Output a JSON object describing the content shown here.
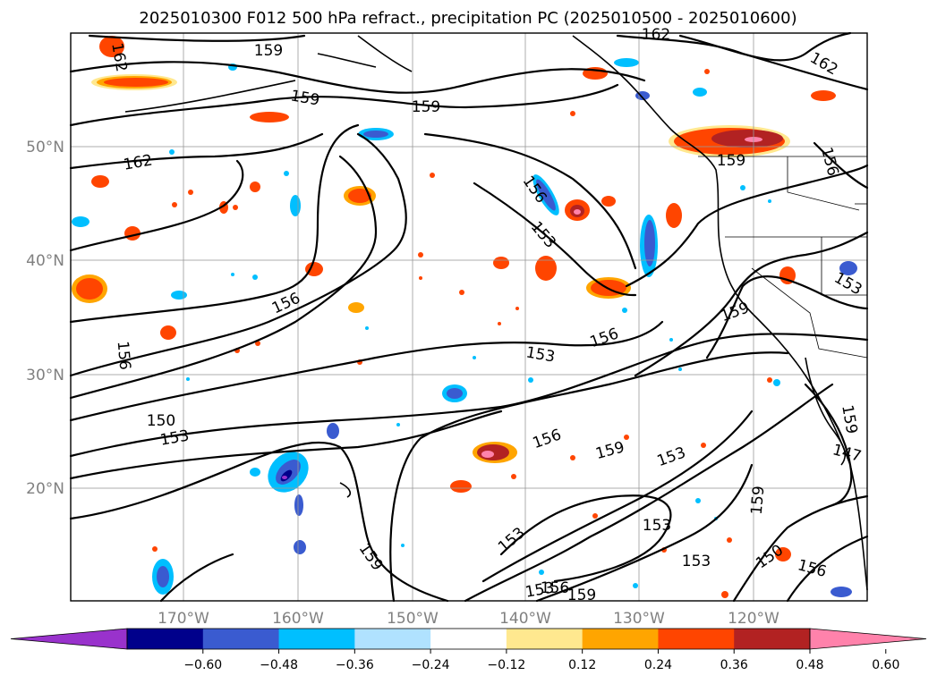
{
  "title": "2025010300 F012 500 hPa refract., precipitation PC (2025010500 - 2025010600)",
  "map": {
    "lat_labels": [
      "50°N",
      "40°N",
      "30°N",
      "20°N"
    ],
    "lon_labels": [
      "170°W",
      "160°W",
      "150°W",
      "140°W",
      "130°W",
      "120°W"
    ],
    "contour_labels": [
      "159",
      "162",
      "162",
      "159",
      "159",
      "162",
      "162",
      "159",
      "156",
      "156",
      "153",
      "153",
      "156",
      "159",
      "156",
      "153",
      "156",
      "150",
      "153",
      "156",
      "159",
      "153",
      "159",
      "147",
      "159",
      "153",
      "153",
      "159",
      "153",
      "150",
      "156",
      "153",
      "156",
      "159"
    ]
  },
  "colorbar": {
    "colors": [
      "#9932cc",
      "#00008b",
      "#3a5bd0",
      "#00bfff",
      "#b0e2ff",
      "#ffffff",
      "#ffe88f",
      "#ffa500",
      "#ff4500",
      "#b22222",
      "#ff82ab"
    ],
    "tick_labels": [
      "−0.60",
      "−0.48",
      "−0.36",
      "−0.24",
      "−0.12",
      "0.12",
      "0.24",
      "0.36",
      "0.48",
      "0.60"
    ]
  }
}
